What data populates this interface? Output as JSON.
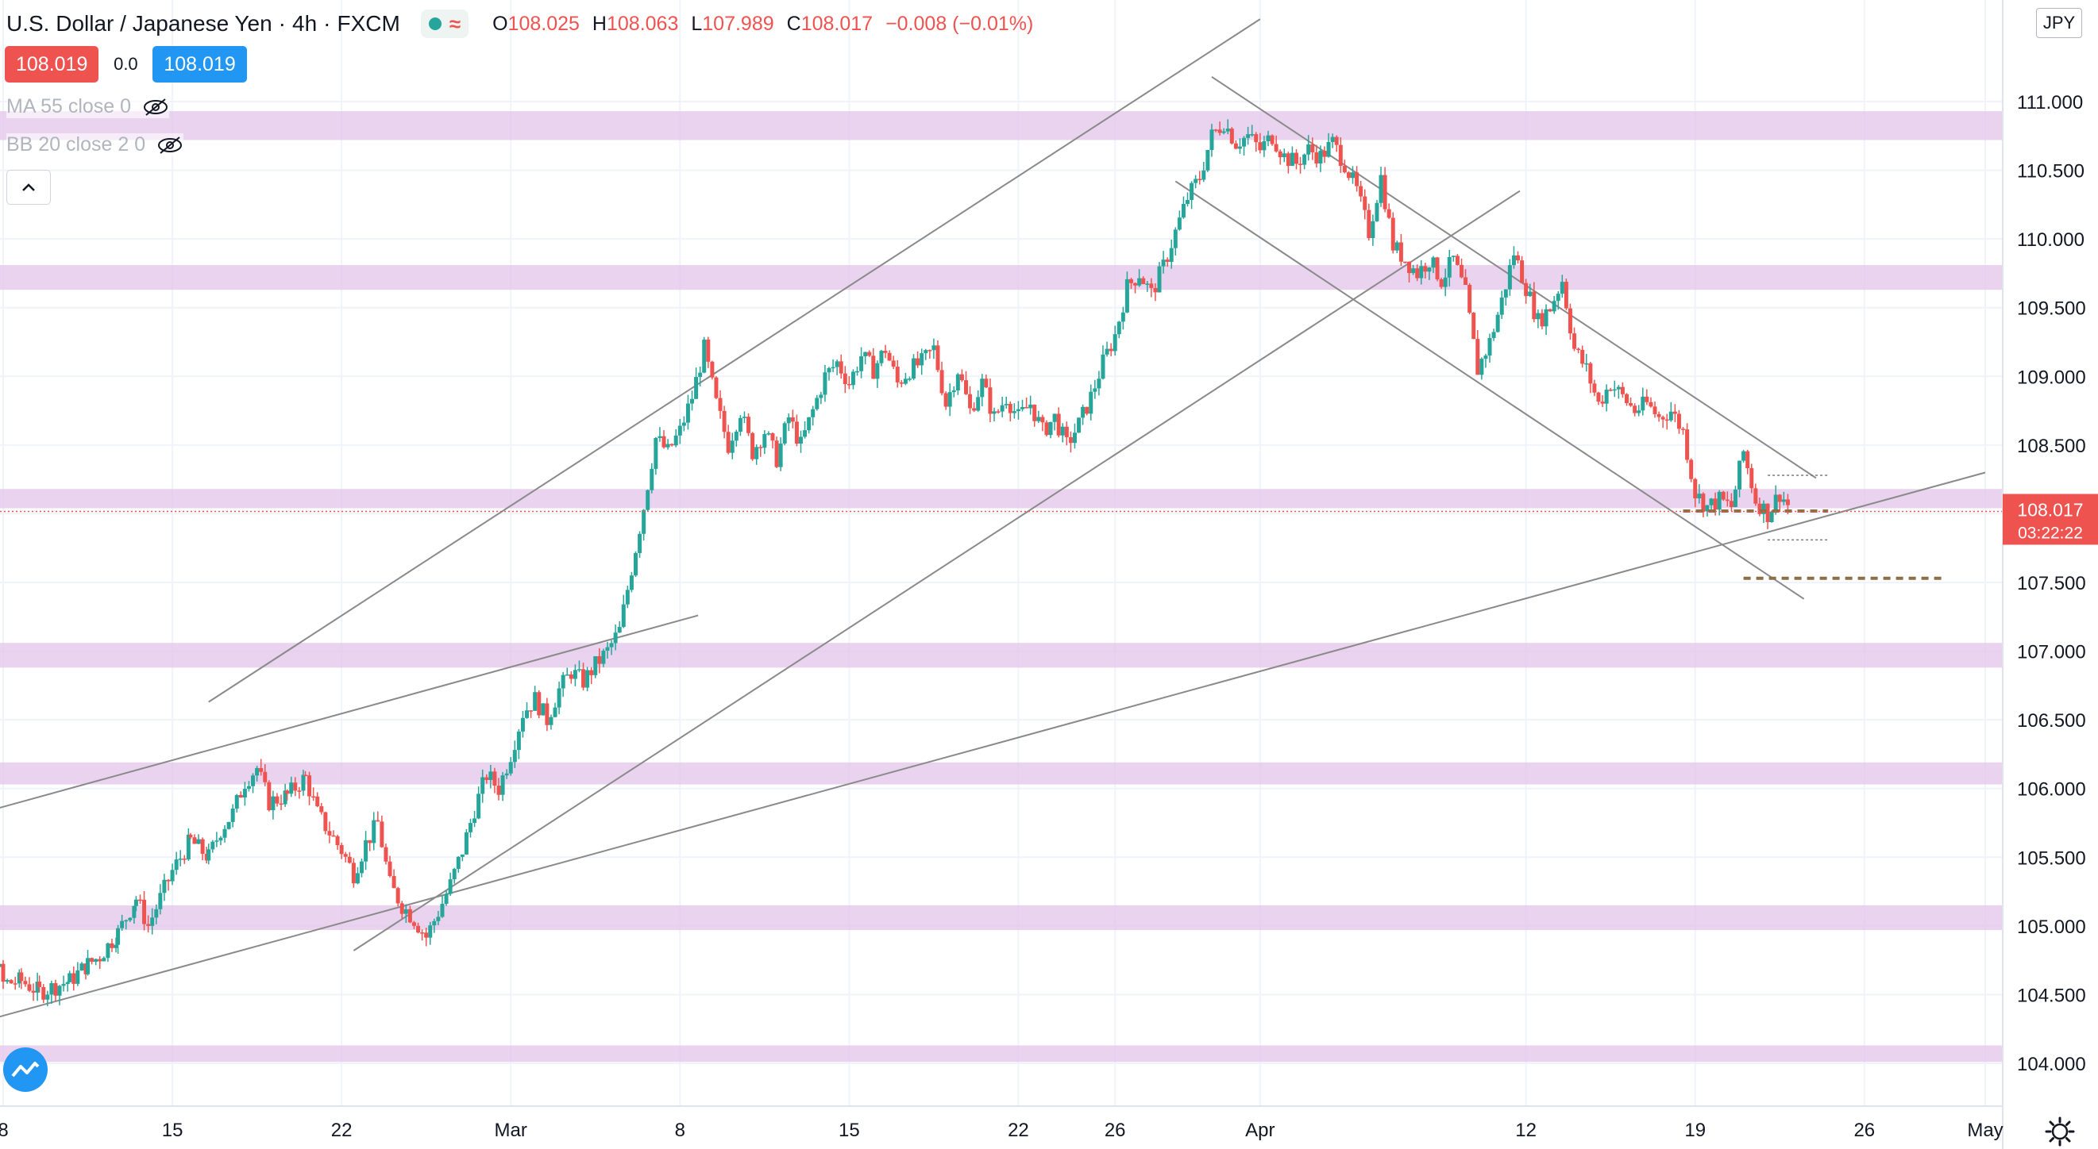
{
  "header": {
    "symbol": "U.S. Dollar / Japanese Yen",
    "interval": "4h",
    "exchange": "FXCM",
    "ohlc": {
      "o_label": "O",
      "o": "108.025",
      "h_label": "H",
      "h": "108.063",
      "l_label": "L",
      "l": "107.989",
      "c_label": "C",
      "c": "108.017",
      "change": "−0.008 (−0.01%)"
    }
  },
  "quote": {
    "sell": "108.019",
    "spread": "0.0",
    "buy": "108.019"
  },
  "indicators": [
    {
      "label": "MA 55 close 0"
    },
    {
      "label": "BB 20 close 2 0"
    }
  ],
  "currency": "JPY",
  "colors": {
    "up": "#26a69a",
    "down": "#ef5350",
    "zone": "#e1c4e8",
    "line": "#8a8a8a",
    "price_tag": "#ef5350",
    "dashed": "#8b6f47"
  },
  "chart_data": {
    "type": "candlestick",
    "title": "",
    "last_price": "108.017",
    "countdown": "03:22:22",
    "ylim": [
      103.9,
      111.2
    ],
    "y_ticks": [
      "104.000",
      "104.500",
      "105.000",
      "105.500",
      "106.000",
      "106.500",
      "107.000",
      "107.500",
      "108.000",
      "108.500",
      "109.000",
      "109.500",
      "110.000",
      "110.500",
      "111.000"
    ],
    "x_ticks": [
      {
        "label": "8",
        "date": "2021-02-08"
      },
      {
        "label": "15",
        "date": "2021-02-15"
      },
      {
        "label": "22",
        "date": "2021-02-22"
      },
      {
        "label": "Mar",
        "date": "2021-03-01"
      },
      {
        "label": "8",
        "date": "2021-03-08"
      },
      {
        "label": "15",
        "date": "2021-03-15"
      },
      {
        "label": "22",
        "date": "2021-03-22"
      },
      {
        "label": "26",
        "date": "2021-03-26"
      },
      {
        "label": "Apr",
        "date": "2021-04-01"
      },
      {
        "label": "12",
        "date": "2021-04-12"
      },
      {
        "label": "19",
        "date": "2021-04-19"
      },
      {
        "label": "26",
        "date": "2021-04-26"
      },
      {
        "label": "May",
        "date": "2021-05-01"
      }
    ],
    "zones": [
      {
        "low": 110.72,
        "high": 110.93
      },
      {
        "low": 109.63,
        "high": 109.81
      },
      {
        "low": 108.04,
        "high": 108.18
      },
      {
        "low": 106.88,
        "high": 107.06
      },
      {
        "low": 106.03,
        "high": 106.19
      },
      {
        "low": 104.97,
        "high": 105.15
      },
      {
        "low": 104.01,
        "high": 104.13
      }
    ],
    "trendlines": [
      {
        "from": [
          "2021-02-16T12:00",
          106.63
        ],
        "to": [
          "2021-04-01T00:00",
          111.6
        ]
      },
      {
        "from": [
          "2021-02-06T00:00",
          105.77
        ],
        "to": [
          "2021-03-08T18:00",
          107.26
        ]
      },
      {
        "from": [
          "2021-02-22T12:00",
          104.82
        ],
        "to": [
          "2021-04-11T18:00",
          110.35
        ]
      },
      {
        "from": [
          "2021-02-06T00:00",
          104.25
        ],
        "to": [
          "2021-05-01T00:00",
          108.3
        ]
      },
      {
        "from": [
          "2021-03-30T00:00",
          111.18
        ],
        "to": [
          "2021-04-24T00:00",
          108.26
        ]
      },
      {
        "from": [
          "2021-03-28T12:00",
          110.42
        ],
        "to": [
          "2021-04-23T12:00",
          107.38
        ]
      }
    ],
    "dashed_levels": [
      {
        "price": 108.02,
        "from": "2021-04-18T12:00",
        "to": "2021-04-24T12:00"
      },
      {
        "price": 107.53,
        "from": "2021-04-21T00:00",
        "to": "2021-04-29T06:00"
      }
    ],
    "range_box": {
      "top": 108.28,
      "bottom": 107.81,
      "from": "2021-04-22T00:00",
      "to": "2021-04-24T12:00"
    },
    "path": [
      [
        "2021-02-05T12:00",
        105.65
      ],
      [
        "2021-02-06T00:00",
        105.48
      ],
      [
        "2021-02-06T18:00",
        105.2
      ],
      [
        "2021-02-07T12:00",
        104.85
      ],
      [
        "2021-02-08T00:00",
        104.58
      ],
      [
        "2021-02-08T18:00",
        104.6
      ],
      [
        "2021-02-09T12:00",
        104.52
      ],
      [
        "2021-02-10T00:00",
        104.55
      ],
      [
        "2021-02-10T18:00",
        104.6
      ],
      [
        "2021-02-11T12:00",
        104.72
      ],
      [
        "2021-02-12T00:00",
        104.78
      ],
      [
        "2021-02-12T18:00",
        104.95
      ],
      [
        "2021-02-13T12:00",
        105.2
      ],
      [
        "2021-02-14T00:00",
        105.0
      ],
      [
        "2021-02-15T00:00",
        105.4
      ],
      [
        "2021-02-15T18:00",
        105.62
      ],
      [
        "2021-02-16T12:00",
        105.5
      ],
      [
        "2021-02-17T00:00",
        105.7
      ],
      [
        "2021-02-17T12:00",
        105.82
      ],
      [
        "2021-02-18T00:00",
        106.05
      ],
      [
        "2021-02-18T12:00",
        106.15
      ],
      [
        "2021-02-19T00:00",
        105.9
      ],
      [
        "2021-02-19T18:00",
        105.95
      ],
      [
        "2021-02-20T12:00",
        106.08
      ],
      [
        "2021-02-21T00:00",
        105.82
      ],
      [
        "2021-02-21T12:00",
        105.68
      ],
      [
        "2021-02-22T00:00",
        105.55
      ],
      [
        "2021-02-22T12:00",
        105.38
      ],
      [
        "2021-02-23T00:00",
        105.6
      ],
      [
        "2021-02-23T12:00",
        105.75
      ],
      [
        "2021-02-24T00:00",
        105.3
      ],
      [
        "2021-02-24T12:00",
        105.15
      ],
      [
        "2021-02-25T00:00",
        105.05
      ],
      [
        "2021-02-25T12:00",
        104.92
      ],
      [
        "2021-02-26T00:00",
        105.1
      ],
      [
        "2021-02-26T12:00",
        105.3
      ],
      [
        "2021-02-27T00:00",
        105.55
      ],
      [
        "2021-02-27T12:00",
        105.85
      ],
      [
        "2021-02-28T00:00",
        106.1
      ],
      [
        "2021-02-28T12:00",
        106.0
      ],
      [
        "2021-03-01T00:00",
        106.25
      ],
      [
        "2021-03-01T12:00",
        106.55
      ],
      [
        "2021-03-02T00:00",
        106.65
      ],
      [
        "2021-03-02T12:00",
        106.5
      ],
      [
        "2021-03-03T00:00",
        106.72
      ],
      [
        "2021-03-03T12:00",
        106.85
      ],
      [
        "2021-03-04T00:00",
        106.78
      ],
      [
        "2021-03-04T12:00",
        106.9
      ],
      [
        "2021-03-05T00:00",
        107.0
      ],
      [
        "2021-03-05T12:00",
        107.15
      ],
      [
        "2021-03-06T00:00",
        107.6
      ],
      [
        "2021-03-06T12:00",
        108.05
      ],
      [
        "2021-03-07T00:00",
        108.55
      ],
      [
        "2021-03-07T12:00",
        108.45
      ],
      [
        "2021-03-08T00:00",
        108.6
      ],
      [
        "2021-03-08T12:00",
        108.85
      ],
      [
        "2021-03-09T00:00",
        109.2
      ],
      [
        "2021-03-09T12:00",
        108.8
      ],
      [
        "2021-03-10T00:00",
        108.5
      ],
      [
        "2021-03-10T12:00",
        108.75
      ],
      [
        "2021-03-11T00:00",
        108.45
      ],
      [
        "2021-03-11T12:00",
        108.6
      ],
      [
        "2021-03-12T00:00",
        108.4
      ],
      [
        "2021-03-12T12:00",
        108.7
      ],
      [
        "2021-03-13T00:00",
        108.5
      ],
      [
        "2021-03-13T12:00",
        108.75
      ],
      [
        "2021-03-14T00:00",
        109.0
      ],
      [
        "2021-03-14T12:00",
        109.1
      ],
      [
        "2021-03-15T00:00",
        108.95
      ],
      [
        "2021-03-15T12:00",
        109.15
      ],
      [
        "2021-03-16T00:00",
        109.05
      ],
      [
        "2021-03-16T12:00",
        109.2
      ],
      [
        "2021-03-17T00:00",
        108.95
      ],
      [
        "2021-03-17T12:00",
        109.05
      ],
      [
        "2021-03-18T00:00",
        109.1
      ],
      [
        "2021-03-18T12:00",
        109.2
      ],
      [
        "2021-03-19T00:00",
        108.8
      ],
      [
        "2021-03-19T12:00",
        109.05
      ],
      [
        "2021-03-20T00:00",
        108.75
      ],
      [
        "2021-03-20T12:00",
        108.95
      ],
      [
        "2021-03-21T00:00",
        108.7
      ],
      [
        "2021-03-21T12:00",
        108.85
      ],
      [
        "2021-03-22T00:00",
        108.7
      ],
      [
        "2021-03-22T12:00",
        108.8
      ],
      [
        "2021-03-23T00:00",
        108.6
      ],
      [
        "2021-03-23T12:00",
        108.7
      ],
      [
        "2021-03-24T00:00",
        108.5
      ],
      [
        "2021-03-24T12:00",
        108.65
      ],
      [
        "2021-03-25T00:00",
        108.85
      ],
      [
        "2021-03-25T12:00",
        109.1
      ],
      [
        "2021-03-26T00:00",
        109.3
      ],
      [
        "2021-03-26T12:00",
        109.65
      ],
      [
        "2021-03-27T00:00",
        109.75
      ],
      [
        "2021-03-27T12:00",
        109.6
      ],
      [
        "2021-03-28T00:00",
        109.8
      ],
      [
        "2021-03-28T12:00",
        110.05
      ],
      [
        "2021-03-29T00:00",
        110.3
      ],
      [
        "2021-03-29T12:00",
        110.45
      ],
      [
        "2021-03-30T00:00",
        110.75
      ],
      [
        "2021-03-30T12:00",
        110.85
      ],
      [
        "2021-03-31T00:00",
        110.7
      ],
      [
        "2021-03-31T12:00",
        110.75
      ],
      [
        "2021-04-01T00:00",
        110.65
      ],
      [
        "2021-04-01T12:00",
        110.75
      ],
      [
        "2021-04-02T00:00",
        110.6
      ],
      [
        "2021-04-02T12:00",
        110.55
      ],
      [
        "2021-04-03T00:00",
        110.65
      ],
      [
        "2021-04-03T12:00",
        110.6
      ],
      [
        "2021-04-04T00:00",
        110.7
      ],
      [
        "2021-04-04T12:00",
        110.55
      ],
      [
        "2021-04-05T00:00",
        110.35
      ],
      [
        "2021-04-05T12:00",
        110.05
      ],
      [
        "2021-04-06T00:00",
        110.45
      ],
      [
        "2021-04-06T12:00",
        109.95
      ],
      [
        "2021-04-07T00:00",
        109.85
      ],
      [
        "2021-04-07T12:00",
        109.75
      ],
      [
        "2021-04-08T00:00",
        109.85
      ],
      [
        "2021-04-08T12:00",
        109.7
      ],
      [
        "2021-04-09T00:00",
        109.85
      ],
      [
        "2021-04-09T12:00",
        109.6
      ],
      [
        "2021-04-10T00:00",
        109.05
      ],
      [
        "2021-04-10T12:00",
        109.25
      ],
      [
        "2021-04-11T00:00",
        109.55
      ],
      [
        "2021-04-11T12:00",
        109.9
      ],
      [
        "2021-04-12T00:00",
        109.65
      ],
      [
        "2021-04-12T12:00",
        109.4
      ],
      [
        "2021-04-13T00:00",
        109.5
      ],
      [
        "2021-04-13T12:00",
        109.7
      ],
      [
        "2021-04-14T00:00",
        109.2
      ],
      [
        "2021-04-14T12:00",
        109.05
      ],
      [
        "2021-04-15T00:00",
        108.8
      ],
      [
        "2021-04-15T12:00",
        108.95
      ],
      [
        "2021-04-16T00:00",
        108.85
      ],
      [
        "2021-04-16T12:00",
        108.75
      ],
      [
        "2021-04-17T00:00",
        108.8
      ],
      [
        "2021-04-17T12:00",
        108.7
      ],
      [
        "2021-04-18T00:00",
        108.75
      ],
      [
        "2021-04-18T12:00",
        108.6
      ],
      [
        "2021-04-19T00:00",
        108.15
      ],
      [
        "2021-04-19T12:00",
        108.05
      ],
      [
        "2021-04-20T00:00",
        108.1
      ],
      [
        "2021-04-20T12:00",
        108.05
      ],
      [
        "2021-04-21T00:00",
        108.45
      ],
      [
        "2021-04-21T12:00",
        108.1
      ],
      [
        "2021-04-22T00:00",
        108.0
      ],
      [
        "2021-04-22T12:00",
        108.15
      ],
      [
        "2021-04-23T00:00",
        108.02
      ]
    ]
  }
}
